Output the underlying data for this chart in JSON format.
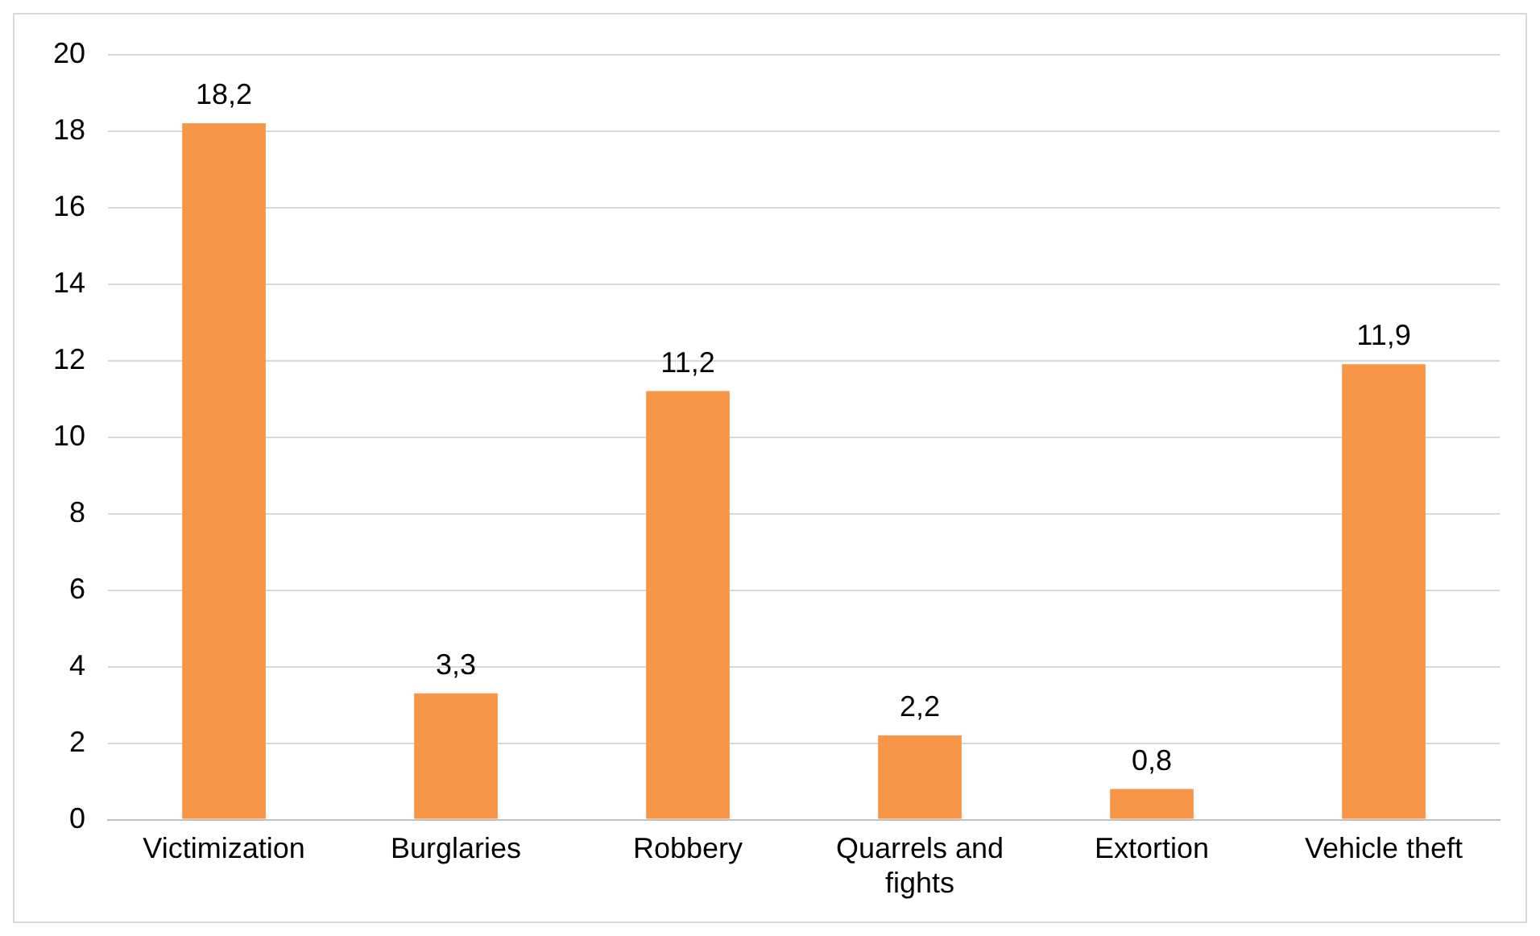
{
  "chart_data": {
    "type": "bar",
    "categories": [
      "Victimization",
      "Burglaries",
      "Robbery",
      "Quarrels and fights",
      "Extortion",
      "Vehicle theft"
    ],
    "values": [
      18.2,
      3.3,
      11.2,
      2.2,
      0.8,
      11.9
    ],
    "value_labels": [
      "18,2",
      "3,3",
      "11,2",
      "2,2",
      "0,8",
      "11,9"
    ],
    "color": "#f79646",
    "ylim": [
      0,
      20
    ],
    "yticks": [
      0,
      2,
      4,
      6,
      8,
      10,
      12,
      14,
      16,
      18,
      20
    ],
    "grid": "y",
    "legend": false
  }
}
